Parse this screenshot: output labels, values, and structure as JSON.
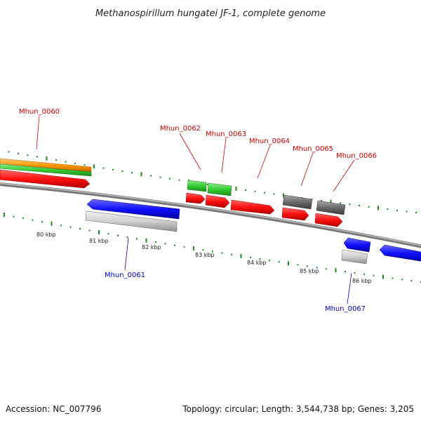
{
  "title": "Methanospirillum hungatei JF-1, complete genome",
  "footer": {
    "accession": "Accession: NC_007796",
    "summary": "Topology: circular; Length: 3,544,738 bp; Genes: 3,205"
  },
  "colors": {
    "forward_label": "#cc0000",
    "reverse_label": "#0000cc",
    "tick": "#1a8a1a",
    "backbone": "#888888"
  },
  "scale_labels": [
    "80 kbp",
    "81 kbp",
    "82 kbp",
    "83 kbp",
    "84 kbp",
    "85 kbp",
    "86 kbp"
  ],
  "genes": [
    {
      "id": "Mhun_0060",
      "strand": "forward"
    },
    {
      "id": "Mhun_0061",
      "strand": "reverse"
    },
    {
      "id": "Mhun_0062",
      "strand": "forward"
    },
    {
      "id": "Mhun_0063",
      "strand": "forward"
    },
    {
      "id": "Mhun_0064",
      "strand": "forward"
    },
    {
      "id": "Mhun_0065",
      "strand": "forward"
    },
    {
      "id": "Mhun_0066",
      "strand": "forward"
    },
    {
      "id": "Mhun_0067",
      "strand": "reverse"
    }
  ]
}
